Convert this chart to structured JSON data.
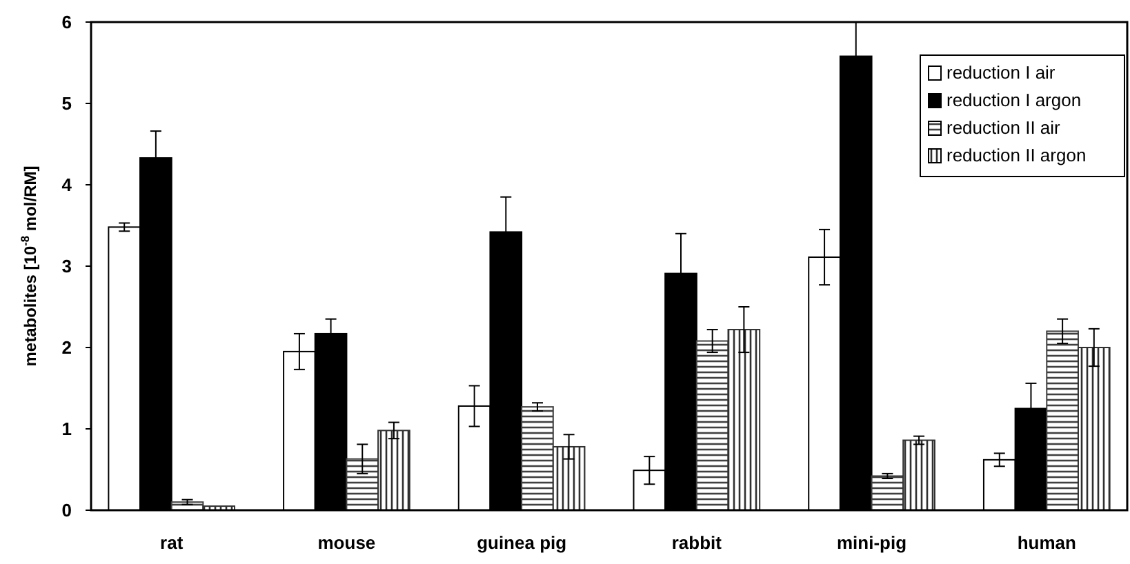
{
  "chart_data": {
    "type": "bar",
    "ylabel": "metabolites [10$^{-8}$ mol/RM]",
    "categories": [
      "rat",
      "mouse",
      "guinea pig",
      "rabbit",
      "mini-pig",
      "human"
    ],
    "series": [
      {
        "name": "reduction I air",
        "color": "#ffffff",
        "values": [
          3.48,
          1.95,
          1.28,
          0.49,
          3.11,
          0.62
        ],
        "errors": [
          0.05,
          0.22,
          0.25,
          0.17,
          0.34,
          0.08
        ]
      },
      {
        "name": "reduction I argon",
        "color": "#000000",
        "values": [
          4.33,
          2.17,
          3.42,
          2.91,
          5.58,
          1.25
        ],
        "errors": [
          0.33,
          0.18,
          0.43,
          0.49,
          0.42,
          0.31
        ]
      },
      {
        "name": "reduction II air",
        "color": "#404040",
        "values": [
          0.1,
          0.63,
          1.27,
          2.08,
          0.42,
          2.2
        ],
        "errors": [
          0.03,
          0.18,
          0.05,
          0.14,
          0.03,
          0.15
        ]
      },
      {
        "name": "reduction II argon",
        "color": "#303030",
        "values": [
          0.05,
          0.98,
          0.78,
          2.22,
          0.86,
          2.0
        ],
        "errors": [
          null,
          0.1,
          0.15,
          0.28,
          0.05,
          0.23
        ]
      }
    ],
    "ylim": [
      0,
      6
    ],
    "yticks": [
      0,
      1,
      2,
      3,
      4,
      5,
      6
    ],
    "grid": false,
    "legend": "top right"
  }
}
